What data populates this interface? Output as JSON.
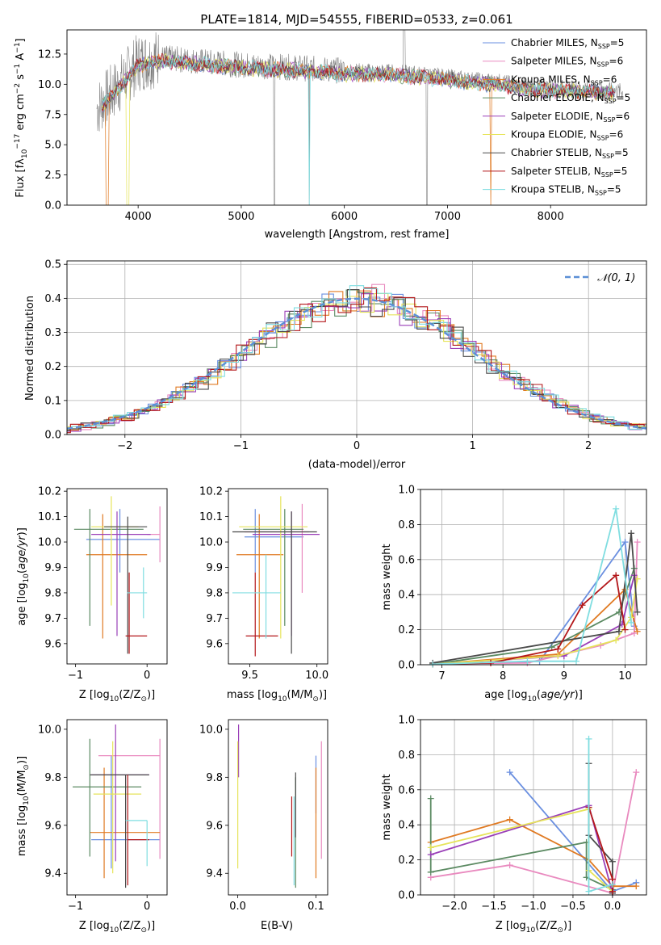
{
  "figure": {
    "title": "PLATE=1814, MJD=54555, FIBERID=0533, z=0.061"
  },
  "colors": [
    "#6a8fe0",
    "#e98abf",
    "#e07a22",
    "#5b8a62",
    "#9a3fb8",
    "#e6e45a",
    "#4a4a4a",
    "#b3171a",
    "#7fdde0"
  ],
  "legend": {
    "models": [
      {
        "label": "Chabrier MILES, N",
        "sub": "SSP",
        "suffix": "=5",
        "color": "#6a8fe0"
      },
      {
        "label": "Salpeter MILES, N",
        "sub": "SSP",
        "suffix": "=6",
        "color": "#e98abf"
      },
      {
        "label": "Kroupa MILES, N",
        "sub": "SSP",
        "suffix": "=6",
        "color": "#e07a22"
      },
      {
        "label": "Chabrier ELODIE, N",
        "sub": "SSP",
        "suffix": "=5",
        "color": "#5b8a62"
      },
      {
        "label": "Salpeter ELODIE, N",
        "sub": "SSP",
        "suffix": "=6",
        "color": "#9a3fb8"
      },
      {
        "label": "Kroupa ELODIE, N",
        "sub": "SSP",
        "suffix": "=6",
        "color": "#e6e45a"
      },
      {
        "label": "Chabrier STELIB, N",
        "sub": "SSP",
        "suffix": "=5",
        "color": "#4a4a4a"
      },
      {
        "label": "Salpeter STELIB, N",
        "sub": "SSP",
        "suffix": "=5",
        "color": "#b3171a"
      },
      {
        "label": "Kroupa STELIB, N",
        "sub": "SSP",
        "suffix": "=5",
        "color": "#7fdde0"
      }
    ],
    "normal_label": "𝒩(0, 1)"
  },
  "chart_data": [
    {
      "id": "spectrum",
      "type": "line",
      "xlabel": "wavelength [Angstrom, rest frame]",
      "ylabel_parts": [
        "Flux [f",
        "λ",
        "10",
        "−17",
        " erg cm",
        "−2",
        " s",
        "−1",
        " A",
        "−1",
        "]"
      ],
      "xlim": [
        3310,
        8930
      ],
      "ylim": [
        0,
        14.5
      ],
      "xticks": [
        4000,
        5000,
        6000,
        7000,
        8000
      ],
      "yticks": [
        0.0,
        2.5,
        5.0,
        7.5,
        10.0,
        12.5
      ],
      "continuum": {
        "x": [
          3600,
          3800,
          4000,
          4200,
          4600,
          5000,
          5500,
          6000,
          6500,
          6900,
          7200,
          7500,
          7800,
          8100,
          8400,
          8700
        ],
        "y": [
          8.0,
          9.8,
          11.8,
          12.2,
          11.9,
          11.6,
          11.4,
          11.1,
          11.0,
          10.7,
          10.4,
          10.2,
          9.8,
          9.7,
          9.6,
          9.4
        ]
      }
    },
    {
      "id": "residuals",
      "type": "step-histogram",
      "xlabel": "(data-model)/error",
      "ylabel": "Normed distribution",
      "xlim": [
        -2.5,
        2.5
      ],
      "ylim": [
        0,
        0.51
      ],
      "xticks": [
        -2,
        -1,
        0,
        1,
        2
      ],
      "yticks": [
        0.0,
        0.1,
        0.2,
        0.3,
        0.4,
        0.5
      ],
      "grid": true
    },
    {
      "id": "age_vs_z",
      "type": "errorbar",
      "xlabel_parts": [
        "Z [log",
        "10",
        "(Z/Z",
        "⊙",
        ")]"
      ],
      "ylabel_parts": [
        "age  [log",
        "10",
        "(",
        "age/yr",
        ")]"
      ],
      "xlim": [
        -1.12,
        0.28
      ],
      "ylim": [
        9.52,
        10.21
      ],
      "xticks": [
        -1,
        0
      ],
      "yticks": [
        9.6,
        9.7,
        9.8,
        9.9,
        10.0,
        10.1,
        10.2
      ],
      "points": [
        {
          "x": -0.38,
          "y": 10.01,
          "xe": [
            -0.85,
            0.18
          ],
          "ye": [
            9.88,
            10.13
          ],
          "c": 0
        },
        {
          "x": 0.18,
          "y": 10.03,
          "xe": [
            0.0,
            0.18
          ],
          "ye": [
            9.92,
            10.14
          ],
          "c": 1
        },
        {
          "x": -0.62,
          "y": 9.95,
          "xe": [
            -0.85,
            0.0
          ],
          "ye": [
            9.62,
            10.11
          ],
          "c": 2
        },
        {
          "x": -0.8,
          "y": 10.05,
          "xe": [
            -1.02,
            -0.05
          ],
          "ye": [
            9.67,
            10.13
          ],
          "c": 3
        },
        {
          "x": -0.42,
          "y": 10.03,
          "xe": [
            -0.78,
            0.05
          ],
          "ye": [
            9.63,
            10.12
          ],
          "c": 4
        },
        {
          "x": -0.5,
          "y": 10.06,
          "xe": [
            -0.78,
            -0.12
          ],
          "ye": [
            9.75,
            10.18
          ],
          "c": 5
        },
        {
          "x": -0.27,
          "y": 10.06,
          "xe": [
            -0.6,
            0.0
          ],
          "ye": [
            9.56,
            10.1
          ],
          "c": 6
        },
        {
          "x": -0.25,
          "y": 9.63,
          "xe": [
            -0.3,
            0.0
          ],
          "ye": [
            9.56,
            9.88
          ],
          "c": 7
        },
        {
          "x": -0.05,
          "y": 9.8,
          "xe": [
            -0.28,
            0.0
          ],
          "ye": [
            9.7,
            9.9
          ],
          "c": 8
        }
      ]
    },
    {
      "id": "age_vs_mass",
      "type": "errorbar",
      "xlabel_parts": [
        "mass [log",
        "10",
        "(M/M",
        "⊙",
        ")]"
      ],
      "xlim": [
        9.34,
        10.08
      ],
      "ylim": [
        9.52,
        10.21
      ],
      "xticks": [
        9.5,
        10.0
      ],
      "yticks": [
        9.6,
        9.7,
        9.8,
        9.9,
        10.0,
        10.1,
        10.2
      ],
      "points": [
        {
          "x": 9.54,
          "y": 10.02,
          "xe": [
            9.46,
            9.9
          ],
          "ye": [
            9.88,
            10.13
          ],
          "c": 0
        },
        {
          "x": 9.89,
          "y": 10.04,
          "xe": [
            9.46,
            9.94
          ],
          "ye": [
            9.8,
            10.15
          ],
          "c": 1
        },
        {
          "x": 9.57,
          "y": 9.95,
          "xe": [
            9.4,
            9.75
          ],
          "ye": [
            9.62,
            10.11
          ],
          "c": 2
        },
        {
          "x": 9.76,
          "y": 10.05,
          "xe": [
            9.45,
            9.9
          ],
          "ye": [
            9.67,
            10.13
          ],
          "c": 3
        },
        {
          "x": 9.81,
          "y": 10.03,
          "xe": [
            9.52,
            10.02
          ],
          "ye": [
            9.63,
            10.12
          ],
          "c": 4
        },
        {
          "x": 9.73,
          "y": 10.06,
          "xe": [
            9.42,
            9.93
          ],
          "ye": [
            9.62,
            10.18
          ],
          "c": 5
        },
        {
          "x": 9.81,
          "y": 10.04,
          "xe": [
            9.37,
            10.0
          ],
          "ye": [
            9.56,
            10.12
          ],
          "c": 6
        },
        {
          "x": 9.54,
          "y": 9.63,
          "xe": [
            9.47,
            9.71
          ],
          "ye": [
            9.55,
            9.88
          ],
          "c": 7
        },
        {
          "x": 9.62,
          "y": 9.8,
          "xe": [
            9.37,
            9.73
          ],
          "ye": [
            9.62,
            9.95
          ],
          "c": 8
        }
      ]
    },
    {
      "id": "weight_vs_age",
      "type": "line",
      "xlabel_parts": [
        "age  [log",
        "10",
        "(",
        "age/yr",
        ")]"
      ],
      "ylabel": "mass weight",
      "xlim": [
        6.65,
        10.35
      ],
      "ylim": [
        0,
        1.0
      ],
      "xticks": [
        7,
        8,
        9,
        10
      ],
      "yticks": [
        0.0,
        0.2,
        0.4,
        0.6,
        0.8,
        1.0
      ],
      "grid": true,
      "series": [
        {
          "c": 0,
          "x": [
            6.85,
            8.6,
            10.0,
            10.15
          ],
          "y": [
            0.005,
            0.02,
            0.7,
            0.22
          ]
        },
        {
          "c": 1,
          "x": [
            6.85,
            8.4,
            9.6,
            10.15,
            10.2
          ],
          "y": [
            0.005,
            0.01,
            0.11,
            0.18,
            0.7
          ]
        },
        {
          "c": 2,
          "x": [
            6.85,
            8.9,
            10.0,
            10.2
          ],
          "y": [
            0.003,
            0.06,
            0.43,
            0.19
          ]
        },
        {
          "c": 3,
          "x": [
            6.85,
            8.8,
            9.9,
            10.15
          ],
          "y": [
            0.003,
            0.1,
            0.3,
            0.55
          ]
        },
        {
          "c": 4,
          "x": [
            6.85,
            9.0,
            9.95,
            10.15
          ],
          "y": [
            0.003,
            0.05,
            0.23,
            0.51
          ]
        },
        {
          "c": 5,
          "x": [
            6.85,
            8.9,
            9.85,
            10.1,
            10.2
          ],
          "y": [
            0.003,
            0.05,
            0.14,
            0.27,
            0.49
          ]
        },
        {
          "c": 6,
          "x": [
            6.85,
            9.9,
            10.1,
            10.2
          ],
          "y": [
            0.01,
            0.19,
            0.75,
            0.3
          ]
        },
        {
          "c": 7,
          "x": [
            6.85,
            7.8,
            8.9,
            9.3,
            9.85,
            10.0
          ],
          "y": [
            0.003,
            0.01,
            0.09,
            0.34,
            0.51,
            0.2
          ]
        },
        {
          "c": 8,
          "x": [
            6.85,
            8.4,
            9.2,
            9.85,
            10.1
          ],
          "y": [
            0.003,
            0.02,
            0.02,
            0.89,
            0.24
          ]
        }
      ]
    },
    {
      "id": "mass_vs_z",
      "type": "errorbar",
      "xlabel_parts": [
        "Z [log",
        "10",
        "(Z/Z",
        "⊙",
        ")]"
      ],
      "ylabel_parts": [
        "mass [log",
        "10",
        "(M/M",
        "⊙",
        ")]"
      ],
      "xlim": [
        -1.12,
        0.28
      ],
      "ylim": [
        9.31,
        10.04
      ],
      "xticks": [
        -1,
        0
      ],
      "yticks": [
        9.4,
        9.6,
        9.8,
        10.0
      ],
      "points": [
        {
          "x": -0.5,
          "y": 9.54,
          "xe": [
            -0.78,
            0.18
          ],
          "ye": [
            9.42,
            9.89
          ],
          "c": 0
        },
        {
          "x": 0.18,
          "y": 9.89,
          "xe": [
            -0.68,
            0.18
          ],
          "ye": [
            9.46,
            9.96
          ],
          "c": 1
        },
        {
          "x": -0.6,
          "y": 9.57,
          "xe": [
            -0.8,
            0.18
          ],
          "ye": [
            9.38,
            9.84
          ],
          "c": 2
        },
        {
          "x": -0.8,
          "y": 9.76,
          "xe": [
            -1.04,
            -0.08
          ],
          "ye": [
            9.47,
            9.96
          ],
          "c": 3
        },
        {
          "x": -0.44,
          "y": 9.81,
          "xe": [
            -0.78,
            0.03
          ],
          "ye": [
            9.45,
            10.02
          ],
          "c": 4
        },
        {
          "x": -0.48,
          "y": 9.73,
          "xe": [
            -0.75,
            -0.08
          ],
          "ye": [
            9.4,
            9.95
          ],
          "c": 5
        },
        {
          "x": -0.3,
          "y": 9.81,
          "xe": [
            -0.8,
            0.03
          ],
          "ye": [
            9.34,
            9.81
          ],
          "c": 6
        },
        {
          "x": -0.27,
          "y": 9.54,
          "xe": [
            -0.27,
            0.03
          ],
          "ye": [
            9.35,
            9.81
          ],
          "c": 7
        },
        {
          "x": 0.0,
          "y": 9.62,
          "xe": [
            -0.3,
            0.0
          ],
          "ye": [
            9.43,
            9.62
          ],
          "c": 8
        }
      ]
    },
    {
      "id": "mass_vs_ebv",
      "type": "errorbar",
      "xlabel": "E(B-V)",
      "xlim": [
        -0.012,
        0.115
      ],
      "ylim": [
        9.31,
        10.04
      ],
      "xticks": [
        0.0,
        0.1
      ],
      "xtick_labels": [
        "0.0",
        "0.1"
      ],
      "yticks": [
        9.4,
        9.6,
        9.8,
        10.0
      ],
      "points": [
        {
          "x": 0.1,
          "y": 9.87,
          "xe": [
            0.1,
            0.1
          ],
          "ye": [
            9.65,
            9.89
          ],
          "c": 0
        },
        {
          "x": 0.107,
          "y": 9.72,
          "xe": [
            0.107,
            0.107
          ],
          "ye": [
            9.46,
            9.95
          ],
          "c": 1
        },
        {
          "x": 0.1,
          "y": 9.6,
          "xe": [
            0.1,
            0.1
          ],
          "ye": [
            9.38,
            9.84
          ],
          "c": 2
        },
        {
          "x": 0.074,
          "y": 9.72,
          "xe": [
            0.074,
            0.074
          ],
          "ye": [
            9.34,
            9.8
          ],
          "c": 3
        },
        {
          "x": 0.001,
          "y": 9.9,
          "xe": [
            0.001,
            0.001
          ],
          "ye": [
            9.8,
            10.02
          ],
          "c": 4
        },
        {
          "x": 0.0,
          "y": 9.73,
          "xe": [
            0.0,
            0.0
          ],
          "ye": [
            9.42,
            9.95
          ],
          "c": 5
        },
        {
          "x": 0.074,
          "y": 9.7,
          "xe": [
            0.074,
            0.074
          ],
          "ye": [
            9.55,
            9.82
          ],
          "c": 6
        },
        {
          "x": 0.069,
          "y": 9.6,
          "xe": [
            0.069,
            0.069
          ],
          "ye": [
            9.47,
            9.72
          ],
          "c": 7
        },
        {
          "x": 0.072,
          "y": 9.55,
          "xe": [
            0.072,
            0.072
          ],
          "ye": [
            9.35,
            9.72
          ],
          "c": 8
        }
      ]
    },
    {
      "id": "weight_vs_z",
      "type": "line",
      "xlabel_parts": [
        "Z [log",
        "10",
        "(Z/Z",
        "⊙",
        ")]"
      ],
      "ylabel": "mass weight",
      "xlim": [
        -2.43,
        0.43
      ],
      "ylim": [
        0,
        1.0
      ],
      "xticks": [
        -2.0,
        -1.5,
        -1.0,
        -0.5,
        0.0
      ],
      "xtick_labels": [
        "−2.0",
        "−1.5",
        "−1.0",
        "−0.5",
        "0.0"
      ],
      "yticks": [
        0.0,
        0.2,
        0.4,
        0.6,
        0.8,
        1.0
      ],
      "grid": true,
      "series": [
        {
          "c": 0,
          "x": [
            -1.3,
            0.0,
            0.3
          ],
          "y": [
            0.7,
            0.02,
            0.07
          ]
        },
        {
          "c": 1,
          "x": [
            -2.3,
            -1.3,
            0.0,
            0.3
          ],
          "y": [
            0.1,
            0.17,
            0.01,
            0.7
          ]
        },
        {
          "c": 2,
          "x": [
            -2.3,
            -1.3,
            -0.3,
            0.0,
            0.3
          ],
          "y": [
            0.3,
            0.43,
            0.2,
            0.05,
            0.05
          ]
        },
        {
          "c": 3,
          "x": [
            -2.3,
            -2.3,
            -0.33,
            -0.33,
            0.0
          ],
          "y": [
            0.55,
            0.13,
            0.3,
            0.1,
            0.03
          ]
        },
        {
          "c": 4,
          "x": [
            -2.3,
            -0.3,
            0.0
          ],
          "y": [
            0.23,
            0.51,
            0.01
          ]
        },
        {
          "c": 5,
          "x": [
            -2.3,
            -0.3,
            -0.3,
            0.0
          ],
          "y": [
            0.27,
            0.49,
            0.14,
            0.02
          ]
        },
        {
          "c": 6,
          "x": [
            -0.3,
            -0.3,
            0.0,
            0.0
          ],
          "y": [
            0.75,
            0.34,
            0.19,
            0.01
          ]
        },
        {
          "c": 7,
          "x": [
            -0.3,
            0.0,
            0.0
          ],
          "y": [
            0.5,
            0.09,
            0.02
          ]
        },
        {
          "c": 8,
          "x": [
            -0.3,
            -0.3,
            0.0
          ],
          "y": [
            0.89,
            0.02,
            0.06
          ]
        }
      ]
    }
  ]
}
